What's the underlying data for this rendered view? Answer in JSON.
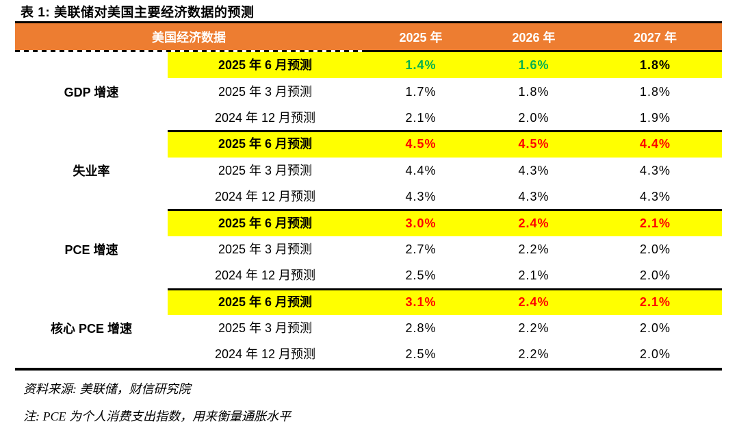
{
  "title": "表 1:  美联储对美国主要经济数据的预测",
  "colors": {
    "orange": "#ED7D31",
    "yellow": "#FFFF00",
    "green": "#00B050",
    "red": "#FF0000",
    "black": "#000000"
  },
  "table": {
    "header": {
      "col1": "美国经济数据",
      "years": [
        "2025 年",
        "2026 年",
        "2027 年"
      ]
    },
    "groups": [
      {
        "category": "GDP 增速",
        "rows": [
          {
            "label": "2025 年 6 月预测",
            "highlight": true,
            "values": [
              {
                "text": "1.4%",
                "tone": "green"
              },
              {
                "text": "1.6%",
                "tone": "green"
              },
              {
                "text": "1.8%",
                "tone": "black"
              }
            ]
          },
          {
            "label": "2025 年 3 月预测",
            "highlight": false,
            "values": [
              {
                "text": "1.7%",
                "tone": "black"
              },
              {
                "text": "1.8%",
                "tone": "black"
              },
              {
                "text": "1.8%",
                "tone": "black"
              }
            ]
          },
          {
            "label": "2024 年 12 月预测",
            "highlight": false,
            "values": [
              {
                "text": "2.1%",
                "tone": "black"
              },
              {
                "text": "2.0%",
                "tone": "black"
              },
              {
                "text": "1.9%",
                "tone": "black"
              }
            ]
          }
        ]
      },
      {
        "category": "失业率",
        "rows": [
          {
            "label": "2025 年 6 月预测",
            "highlight": true,
            "values": [
              {
                "text": "4.5%",
                "tone": "red"
              },
              {
                "text": "4.5%",
                "tone": "red"
              },
              {
                "text": "4.4%",
                "tone": "red"
              }
            ]
          },
          {
            "label": "2025 年 3 月预测",
            "highlight": false,
            "values": [
              {
                "text": "4.4%",
                "tone": "black"
              },
              {
                "text": "4.3%",
                "tone": "black"
              },
              {
                "text": "4.3%",
                "tone": "black"
              }
            ]
          },
          {
            "label": "2024 年 12 月预测",
            "highlight": false,
            "values": [
              {
                "text": "4.3%",
                "tone": "black"
              },
              {
                "text": "4.3%",
                "tone": "black"
              },
              {
                "text": "4.3%",
                "tone": "black"
              }
            ]
          }
        ]
      },
      {
        "category": "PCE 增速",
        "rows": [
          {
            "label": "2025 年 6 月预测",
            "highlight": true,
            "values": [
              {
                "text": "3.0%",
                "tone": "red"
              },
              {
                "text": "2.4%",
                "tone": "red"
              },
              {
                "text": "2.1%",
                "tone": "red"
              }
            ]
          },
          {
            "label": "2025 年 3 月预测",
            "highlight": false,
            "values": [
              {
                "text": "2.7%",
                "tone": "black"
              },
              {
                "text": "2.2%",
                "tone": "black"
              },
              {
                "text": "2.0%",
                "tone": "black"
              }
            ]
          },
          {
            "label": "2024 年 12 月预测",
            "highlight": false,
            "values": [
              {
                "text": "2.5%",
                "tone": "black"
              },
              {
                "text": "2.1%",
                "tone": "black"
              },
              {
                "text": "2.0%",
                "tone": "black"
              }
            ]
          }
        ]
      },
      {
        "category": "核心 PCE 增速",
        "rows": [
          {
            "label": "2025 年 6 月预测",
            "highlight": true,
            "values": [
              {
                "text": "3.1%",
                "tone": "red"
              },
              {
                "text": "2.4%",
                "tone": "red"
              },
              {
                "text": "2.1%",
                "tone": "red"
              }
            ]
          },
          {
            "label": "2025 年 3 月预测",
            "highlight": false,
            "values": [
              {
                "text": "2.8%",
                "tone": "black"
              },
              {
                "text": "2.2%",
                "tone": "black"
              },
              {
                "text": "2.0%",
                "tone": "black"
              }
            ]
          },
          {
            "label": "2024 年 12 月预测",
            "highlight": false,
            "values": [
              {
                "text": "2.5%",
                "tone": "black"
              },
              {
                "text": "2.2%",
                "tone": "black"
              },
              {
                "text": "2.0%",
                "tone": "black"
              }
            ]
          }
        ]
      }
    ]
  },
  "footer": {
    "source": "资料来源:  美联储，财信研究院",
    "note": "注:  PCE 为个人消费支出指数，用来衡量通胀水平"
  }
}
